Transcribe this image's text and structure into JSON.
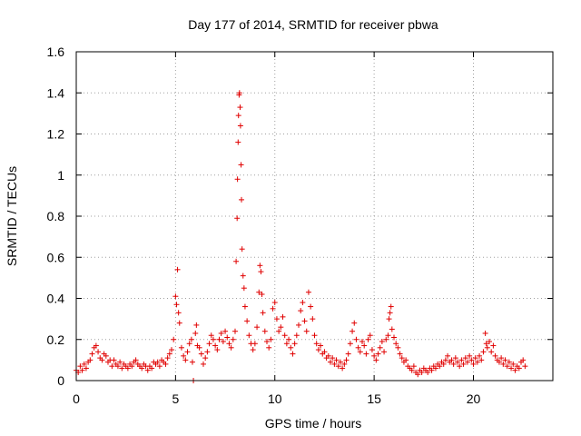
{
  "chart_data": {
    "type": "scatter",
    "title": "Day 177 of 2014, SRMTID for receiver pbwa",
    "xlabel": "GPS time / hours",
    "ylabel": "SRMTID / TECUs",
    "xlim": [
      0,
      24
    ],
    "ylim": [
      0,
      1.6
    ],
    "xticks": [
      0,
      5,
      10,
      15,
      20
    ],
    "xtick_labels": [
      "0",
      "5",
      "10",
      "15",
      "20"
    ],
    "yticks": [
      0,
      0.2,
      0.4,
      0.6,
      0.8,
      1.0,
      1.2,
      1.4,
      1.6
    ],
    "ytick_labels": [
      "0",
      "0.2",
      "0.4",
      "0.6",
      "0.8",
      "1",
      "1.2",
      "1.4",
      "1.6"
    ],
    "grid": true,
    "marker": "plus",
    "color": "#e00000",
    "series": [
      {
        "name": "SRMTID",
        "points": [
          [
            0.0,
            0.05
          ],
          [
            0.1,
            0.04
          ],
          [
            0.2,
            0.07
          ],
          [
            0.3,
            0.05
          ],
          [
            0.4,
            0.08
          ],
          [
            0.5,
            0.06
          ],
          [
            0.6,
            0.09
          ],
          [
            0.7,
            0.1
          ],
          [
            0.8,
            0.13
          ],
          [
            0.9,
            0.16
          ],
          [
            1.0,
            0.17
          ],
          [
            1.1,
            0.14
          ],
          [
            1.2,
            0.11
          ],
          [
            1.3,
            0.1
          ],
          [
            1.4,
            0.13
          ],
          [
            1.5,
            0.12
          ],
          [
            1.6,
            0.09
          ],
          [
            1.7,
            0.1
          ],
          [
            1.8,
            0.07
          ],
          [
            1.9,
            0.1
          ],
          [
            2.0,
            0.08
          ],
          [
            2.1,
            0.07
          ],
          [
            2.2,
            0.09
          ],
          [
            2.3,
            0.06
          ],
          [
            2.4,
            0.08
          ],
          [
            2.5,
            0.07
          ],
          [
            2.6,
            0.06
          ],
          [
            2.7,
            0.08
          ],
          [
            2.8,
            0.07
          ],
          [
            2.9,
            0.09
          ],
          [
            3.0,
            0.1
          ],
          [
            3.1,
            0.08
          ],
          [
            3.2,
            0.07
          ],
          [
            3.3,
            0.06
          ],
          [
            3.4,
            0.08
          ],
          [
            3.5,
            0.07
          ],
          [
            3.6,
            0.05
          ],
          [
            3.7,
            0.07
          ],
          [
            3.8,
            0.06
          ],
          [
            3.9,
            0.09
          ],
          [
            4.0,
            0.08
          ],
          [
            4.1,
            0.09
          ],
          [
            4.2,
            0.07
          ],
          [
            4.3,
            0.1
          ],
          [
            4.4,
            0.09
          ],
          [
            4.5,
            0.08
          ],
          [
            4.6,
            0.11
          ],
          [
            4.7,
            0.13
          ],
          [
            4.8,
            0.15
          ],
          [
            4.9,
            0.2
          ],
          [
            5.0,
            0.41
          ],
          [
            5.05,
            0.37
          ],
          [
            5.1,
            0.54
          ],
          [
            5.15,
            0.33
          ],
          [
            5.2,
            0.28
          ],
          [
            5.3,
            0.16
          ],
          [
            5.4,
            0.12
          ],
          [
            5.5,
            0.1
          ],
          [
            5.6,
            0.14
          ],
          [
            5.7,
            0.18
          ],
          [
            5.8,
            0.2
          ],
          [
            5.85,
            0.09
          ],
          [
            5.9,
            0.0
          ],
          [
            6.0,
            0.23
          ],
          [
            6.05,
            0.27
          ],
          [
            6.1,
            0.17
          ],
          [
            6.2,
            0.16
          ],
          [
            6.3,
            0.13
          ],
          [
            6.4,
            0.08
          ],
          [
            6.5,
            0.11
          ],
          [
            6.6,
            0.14
          ],
          [
            6.7,
            0.18
          ],
          [
            6.8,
            0.22
          ],
          [
            6.9,
            0.2
          ],
          [
            7.0,
            0.17
          ],
          [
            7.1,
            0.15
          ],
          [
            7.2,
            0.2
          ],
          [
            7.3,
            0.23
          ],
          [
            7.4,
            0.19
          ],
          [
            7.5,
            0.24
          ],
          [
            7.6,
            0.21
          ],
          [
            7.7,
            0.18
          ],
          [
            7.8,
            0.16
          ],
          [
            7.9,
            0.2
          ],
          [
            8.0,
            0.24
          ],
          [
            8.05,
            0.58
          ],
          [
            8.1,
            0.79
          ],
          [
            8.12,
            0.98
          ],
          [
            8.15,
            1.16
          ],
          [
            8.17,
            1.29
          ],
          [
            8.2,
            1.39
          ],
          [
            8.22,
            1.4
          ],
          [
            8.25,
            1.33
          ],
          [
            8.27,
            1.24
          ],
          [
            8.3,
            1.05
          ],
          [
            8.32,
            0.88
          ],
          [
            8.35,
            0.64
          ],
          [
            8.4,
            0.51
          ],
          [
            8.45,
            0.45
          ],
          [
            8.5,
            0.36
          ],
          [
            8.6,
            0.29
          ],
          [
            8.7,
            0.22
          ],
          [
            8.8,
            0.18
          ],
          [
            8.9,
            0.15
          ],
          [
            9.0,
            0.18
          ],
          [
            9.1,
            0.26
          ],
          [
            9.2,
            0.43
          ],
          [
            9.25,
            0.56
          ],
          [
            9.3,
            0.53
          ],
          [
            9.35,
            0.42
          ],
          [
            9.4,
            0.33
          ],
          [
            9.5,
            0.24
          ],
          [
            9.6,
            0.19
          ],
          [
            9.7,
            0.16
          ],
          [
            9.8,
            0.2
          ],
          [
            9.9,
            0.35
          ],
          [
            10.0,
            0.38
          ],
          [
            10.1,
            0.3
          ],
          [
            10.2,
            0.24
          ],
          [
            10.3,
            0.26
          ],
          [
            10.4,
            0.31
          ],
          [
            10.5,
            0.22
          ],
          [
            10.6,
            0.18
          ],
          [
            10.7,
            0.2
          ],
          [
            10.8,
            0.16
          ],
          [
            10.9,
            0.13
          ],
          [
            11.0,
            0.18
          ],
          [
            11.1,
            0.22
          ],
          [
            11.2,
            0.27
          ],
          [
            11.3,
            0.34
          ],
          [
            11.4,
            0.38
          ],
          [
            11.5,
            0.29
          ],
          [
            11.6,
            0.24
          ],
          [
            11.7,
            0.43
          ],
          [
            11.8,
            0.36
          ],
          [
            11.9,
            0.3
          ],
          [
            12.0,
            0.22
          ],
          [
            12.1,
            0.18
          ],
          [
            12.2,
            0.15
          ],
          [
            12.3,
            0.17
          ],
          [
            12.4,
            0.13
          ],
          [
            12.5,
            0.14
          ],
          [
            12.6,
            0.11
          ],
          [
            12.7,
            0.12
          ],
          [
            12.8,
            0.09
          ],
          [
            12.9,
            0.11
          ],
          [
            13.0,
            0.08
          ],
          [
            13.1,
            0.1
          ],
          [
            13.2,
            0.07
          ],
          [
            13.3,
            0.09
          ],
          [
            13.4,
            0.06
          ],
          [
            13.5,
            0.08
          ],
          [
            13.6,
            0.1
          ],
          [
            13.7,
            0.13
          ],
          [
            13.8,
            0.18
          ],
          [
            13.9,
            0.24
          ],
          [
            14.0,
            0.28
          ],
          [
            14.1,
            0.2
          ],
          [
            14.2,
            0.16
          ],
          [
            14.3,
            0.14
          ],
          [
            14.4,
            0.19
          ],
          [
            14.5,
            0.17
          ],
          [
            14.6,
            0.13
          ],
          [
            14.7,
            0.2
          ],
          [
            14.8,
            0.22
          ],
          [
            14.9,
            0.15
          ],
          [
            15.0,
            0.12
          ],
          [
            15.1,
            0.1
          ],
          [
            15.2,
            0.13
          ],
          [
            15.3,
            0.16
          ],
          [
            15.4,
            0.19
          ],
          [
            15.5,
            0.14
          ],
          [
            15.6,
            0.2
          ],
          [
            15.7,
            0.22
          ],
          [
            15.75,
            0.3
          ],
          [
            15.8,
            0.33
          ],
          [
            15.85,
            0.36
          ],
          [
            15.9,
            0.25
          ],
          [
            16.0,
            0.21
          ],
          [
            16.1,
            0.18
          ],
          [
            16.2,
            0.16
          ],
          [
            16.3,
            0.13
          ],
          [
            16.4,
            0.11
          ],
          [
            16.5,
            0.09
          ],
          [
            16.6,
            0.1
          ],
          [
            16.7,
            0.07
          ],
          [
            16.8,
            0.06
          ],
          [
            16.9,
            0.05
          ],
          [
            17.0,
            0.07
          ],
          [
            17.1,
            0.04
          ],
          [
            17.2,
            0.03
          ],
          [
            17.3,
            0.05
          ],
          [
            17.4,
            0.04
          ],
          [
            17.5,
            0.06
          ],
          [
            17.6,
            0.05
          ],
          [
            17.7,
            0.04
          ],
          [
            17.8,
            0.06
          ],
          [
            17.9,
            0.05
          ],
          [
            18.0,
            0.07
          ],
          [
            18.1,
            0.06
          ],
          [
            18.2,
            0.08
          ],
          [
            18.3,
            0.07
          ],
          [
            18.4,
            0.09
          ],
          [
            18.5,
            0.08
          ],
          [
            18.6,
            0.1
          ],
          [
            18.7,
            0.12
          ],
          [
            18.8,
            0.09
          ],
          [
            18.9,
            0.1
          ],
          [
            19.0,
            0.08
          ],
          [
            19.1,
            0.11
          ],
          [
            19.2,
            0.09
          ],
          [
            19.3,
            0.07
          ],
          [
            19.4,
            0.1
          ],
          [
            19.5,
            0.08
          ],
          [
            19.6,
            0.11
          ],
          [
            19.7,
            0.09
          ],
          [
            19.8,
            0.12
          ],
          [
            19.9,
            0.1
          ],
          [
            20.0,
            0.08
          ],
          [
            20.1,
            0.11
          ],
          [
            20.2,
            0.09
          ],
          [
            20.3,
            0.12
          ],
          [
            20.4,
            0.1
          ],
          [
            20.5,
            0.14
          ],
          [
            20.6,
            0.23
          ],
          [
            20.65,
            0.18
          ],
          [
            20.7,
            0.16
          ],
          [
            20.8,
            0.19
          ],
          [
            20.9,
            0.14
          ],
          [
            21.0,
            0.17
          ],
          [
            21.1,
            0.12
          ],
          [
            21.2,
            0.1
          ],
          [
            21.3,
            0.09
          ],
          [
            21.4,
            0.11
          ],
          [
            21.5,
            0.08
          ],
          [
            21.6,
            0.1
          ],
          [
            21.7,
            0.07
          ],
          [
            21.8,
            0.09
          ],
          [
            21.9,
            0.06
          ],
          [
            22.0,
            0.08
          ],
          [
            22.1,
            0.05
          ],
          [
            22.2,
            0.07
          ],
          [
            22.3,
            0.06
          ],
          [
            22.4,
            0.09
          ],
          [
            22.5,
            0.1
          ],
          [
            22.6,
            0.07
          ]
        ]
      }
    ]
  }
}
